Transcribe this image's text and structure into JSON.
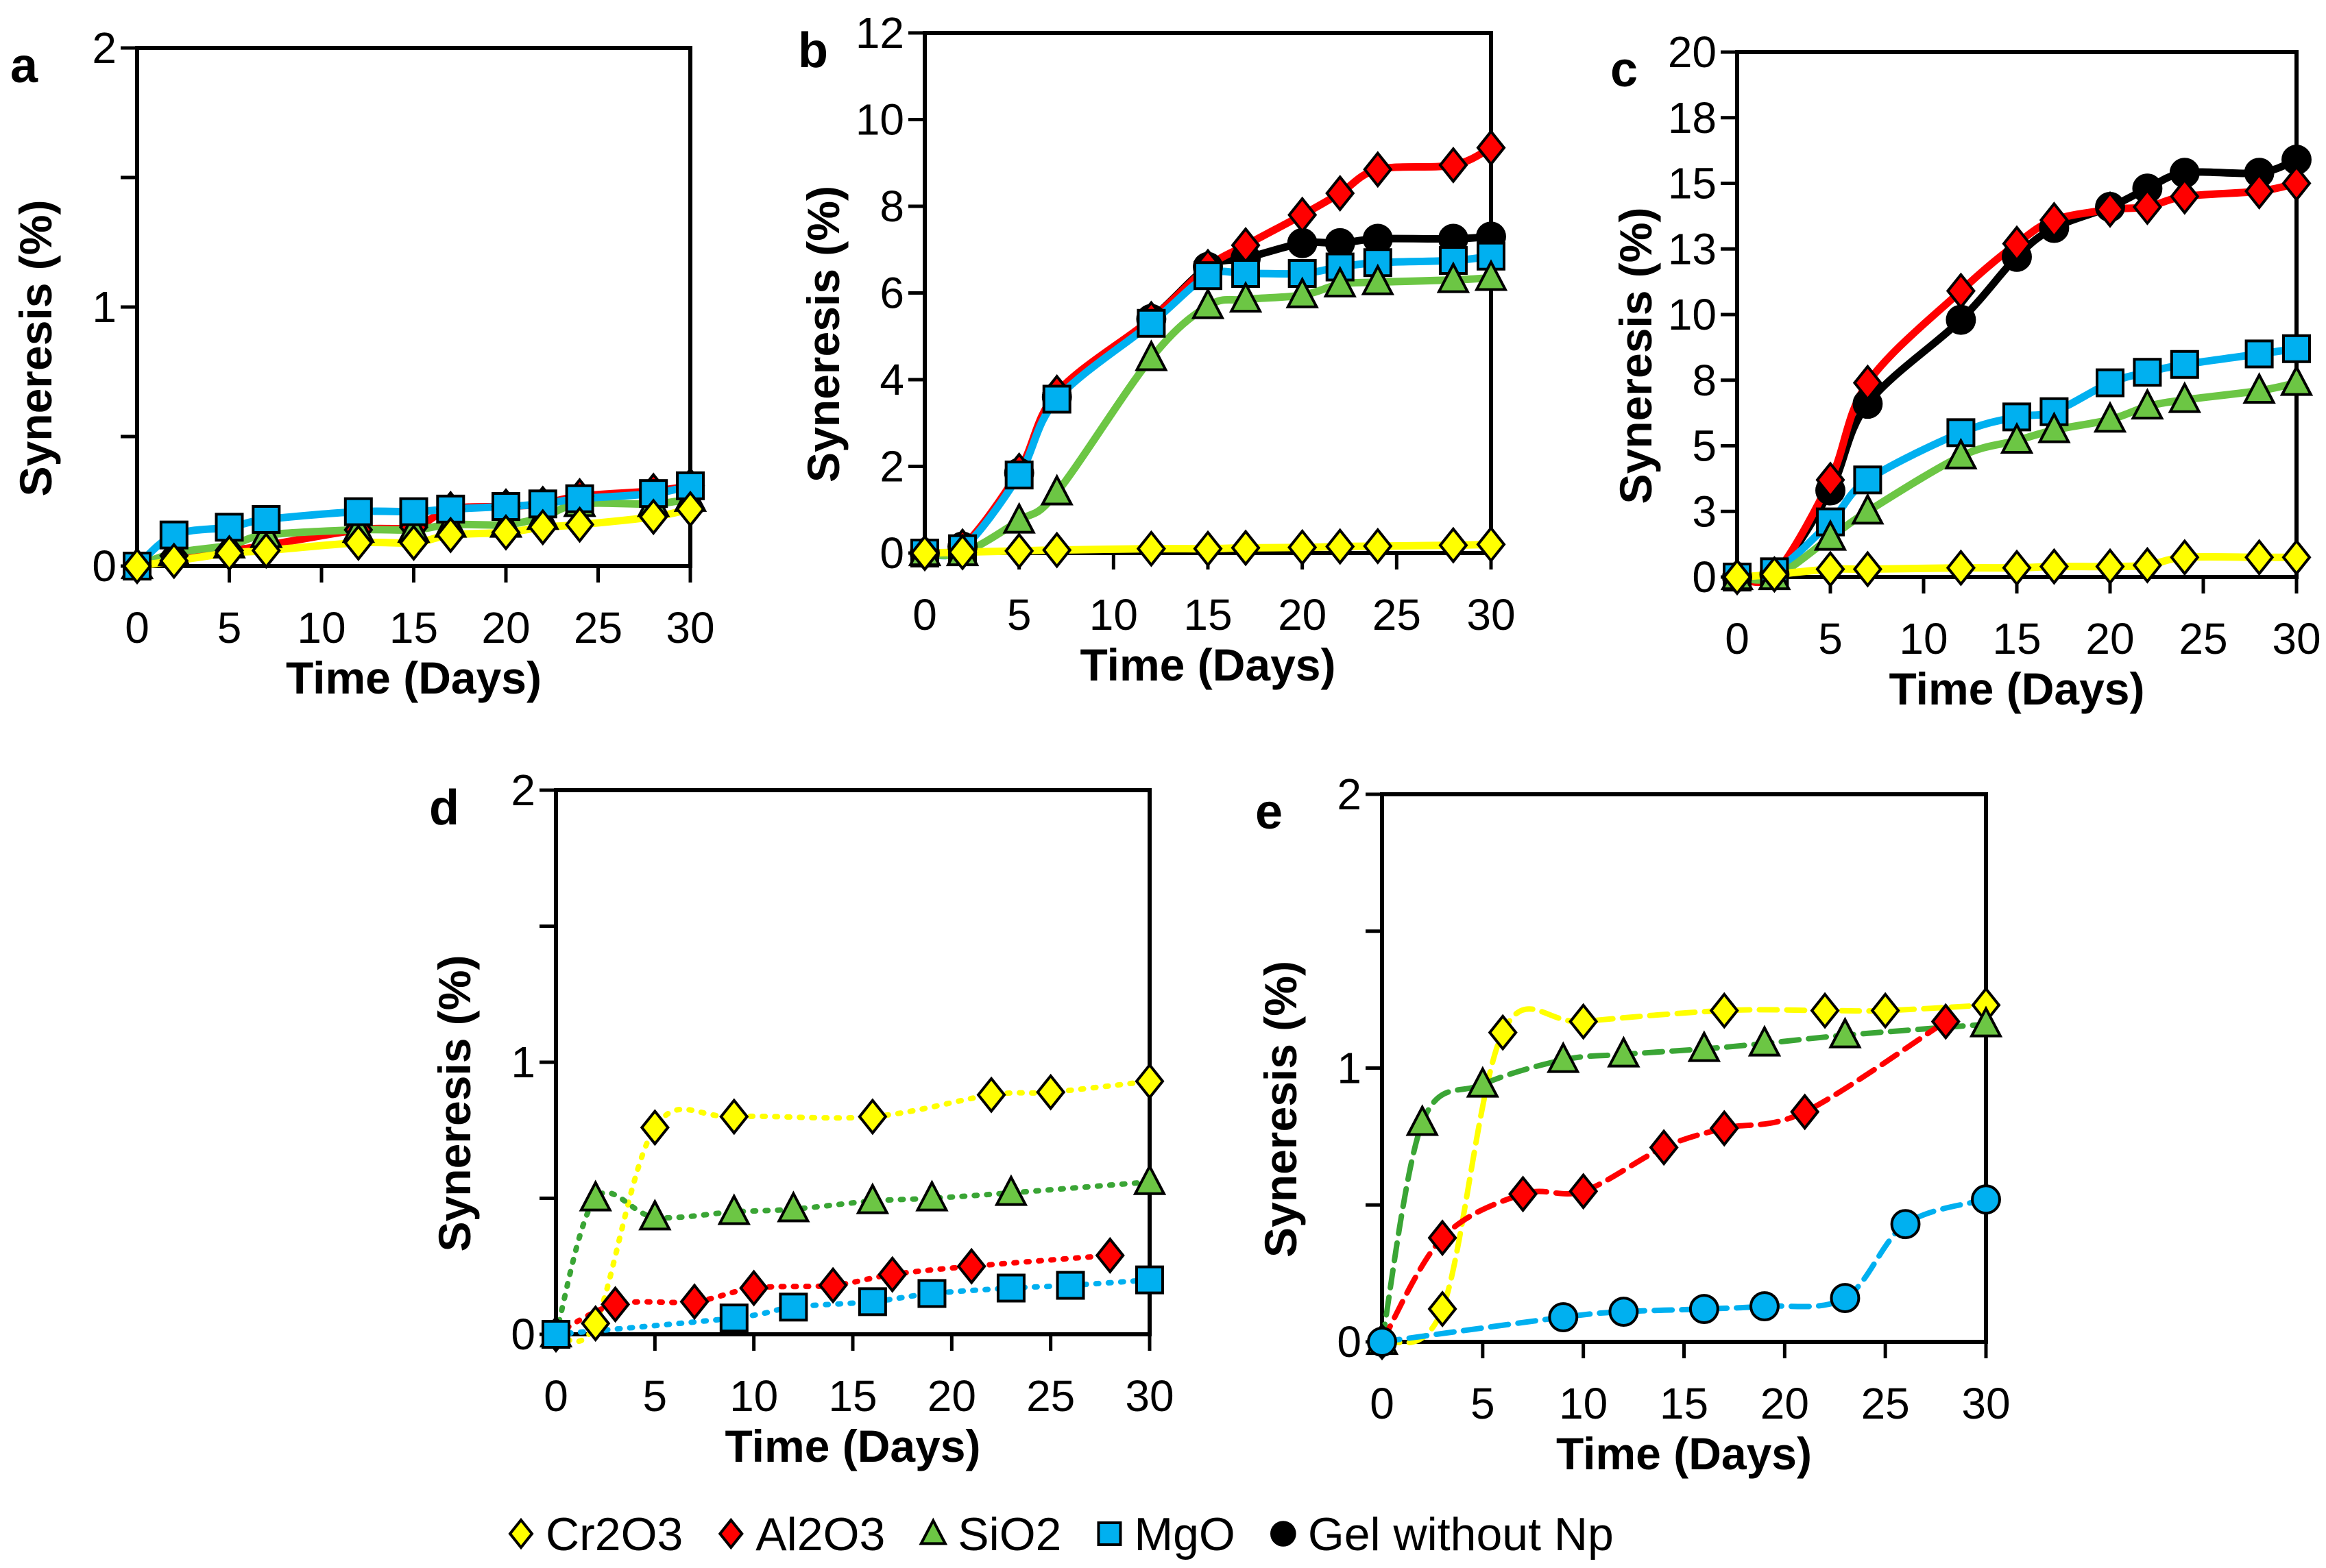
{
  "legend": {
    "placement": "bottom-center",
    "items": [
      {
        "name": "Cr2O3",
        "marker": "diamond",
        "color": "#FFFF00"
      },
      {
        "name": "Al2O3",
        "marker": "diamond",
        "color": "#FF0000"
      },
      {
        "name": "SiO2",
        "marker": "triangle",
        "color": "#6CC644"
      },
      {
        "name": "MgO",
        "marker": "square",
        "color": "#00B0F0"
      },
      {
        "name": "Gel without Np",
        "marker": "circle",
        "color": "#000000"
      }
    ]
  },
  "chart_data": [
    {
      "panel": "a",
      "type": "line",
      "line_style": "solid",
      "xlabel": "Time (Days)",
      "ylabel": "Syneresis (%)",
      "xlim": [
        0,
        30
      ],
      "ylim": [
        0,
        2
      ],
      "xticks": [
        0,
        5,
        10,
        15,
        20,
        25,
        30
      ],
      "yticks": [
        0,
        0.5,
        1,
        1.5,
        2
      ],
      "ytick_labels": [
        "0",
        "",
        "1",
        "",
        "2"
      ],
      "series": [
        {
          "name": "Al2O3",
          "x": [
            0,
            2,
            5,
            7,
            12,
            15,
            17,
            20,
            22,
            24,
            28,
            30
          ],
          "y": [
            0,
            0.04,
            0.06,
            0.08,
            0.14,
            0.15,
            0.22,
            0.23,
            0.24,
            0.27,
            0.29,
            0.31
          ]
        },
        {
          "name": "SiO2",
          "x": [
            0,
            2,
            5,
            7,
            12,
            15,
            17,
            20,
            22,
            24,
            28,
            30
          ],
          "y": [
            0,
            0.05,
            0.08,
            0.12,
            0.14,
            0.14,
            0.16,
            0.16,
            0.19,
            0.24,
            0.24,
            0.26
          ]
        },
        {
          "name": "MgO",
          "x": [
            0,
            2,
            5,
            7,
            12,
            15,
            17,
            20,
            22,
            24,
            28,
            30
          ],
          "y": [
            0,
            0.12,
            0.15,
            0.18,
            0.21,
            0.21,
            0.22,
            0.23,
            0.24,
            0.26,
            0.28,
            0.31
          ]
        },
        {
          "name": "Cr2O3",
          "x": [
            0,
            2,
            5,
            7,
            12,
            15,
            17,
            20,
            22,
            24,
            28,
            30
          ],
          "y": [
            0,
            0.02,
            0.05,
            0.06,
            0.09,
            0.09,
            0.12,
            0.13,
            0.15,
            0.16,
            0.19,
            0.22
          ]
        }
      ]
    },
    {
      "panel": "b",
      "type": "line",
      "line_style": "solid",
      "xlabel": "Time (Days)",
      "ylabel": "Syneresis (%)",
      "xlim": [
        0,
        30
      ],
      "ylim": [
        0,
        12
      ],
      "xticks": [
        0,
        5,
        10,
        15,
        20,
        25,
        30
      ],
      "yticks": [
        0,
        2,
        4,
        6,
        8,
        10,
        12
      ],
      "ytick_labels": [
        "0",
        "2",
        "4",
        "6",
        "8",
        "10",
        "12"
      ],
      "series": [
        {
          "name": "Gel without Np",
          "x": [
            0,
            2,
            5,
            7,
            12,
            15,
            17,
            20,
            22,
            24,
            28,
            30
          ],
          "y": [
            0,
            0.15,
            1.85,
            3.6,
            5.4,
            6.6,
            6.8,
            7.15,
            7.15,
            7.25,
            7.25,
            7.3
          ]
        },
        {
          "name": "Al2O3",
          "x": [
            0,
            2,
            5,
            7,
            12,
            15,
            17,
            20,
            22,
            24,
            28,
            30
          ],
          "y": [
            0,
            0.15,
            1.9,
            3.7,
            5.4,
            6.6,
            7.1,
            7.8,
            8.3,
            8.85,
            8.95,
            9.35
          ]
        },
        {
          "name": "MgO",
          "x": [
            0,
            2,
            5,
            7,
            12,
            15,
            17,
            20,
            22,
            24,
            28,
            30
          ],
          "y": [
            0,
            0.1,
            1.8,
            3.55,
            5.3,
            6.4,
            6.45,
            6.45,
            6.6,
            6.7,
            6.75,
            6.85
          ]
        },
        {
          "name": "SiO2",
          "x": [
            0,
            2,
            5,
            7,
            12,
            15,
            17,
            20,
            22,
            24,
            28,
            30
          ],
          "y": [
            0,
            0,
            0.75,
            1.4,
            4.5,
            5.7,
            5.85,
            5.95,
            6.2,
            6.25,
            6.3,
            6.35
          ]
        },
        {
          "name": "Cr2O3",
          "x": [
            0,
            2,
            5,
            7,
            12,
            15,
            17,
            20,
            22,
            24,
            28,
            30
          ],
          "y": [
            0,
            0.02,
            0.05,
            0.07,
            0.1,
            0.1,
            0.12,
            0.13,
            0.15,
            0.16,
            0.18,
            0.2
          ]
        }
      ]
    },
    {
      "panel": "c",
      "type": "line",
      "line_style": "solid",
      "xlabel": "Time (Days)",
      "ylabel": "Syneresis (%)",
      "xlim": [
        0,
        30
      ],
      "ylim": [
        0,
        20
      ],
      "xticks": [
        0,
        5,
        10,
        15,
        20,
        25,
        30
      ],
      "yticks": [
        0,
        2.5,
        5,
        7.5,
        10,
        12.5,
        15,
        17.5,
        20
      ],
      "ytick_labels": [
        "0",
        "3",
        "5",
        "8",
        "10",
        "13",
        "15",
        "18",
        "20"
      ],
      "series": [
        {
          "name": "Gel without Np",
          "x": [
            0,
            2,
            5,
            7,
            12,
            15,
            17,
            20,
            22,
            24,
            28,
            30
          ],
          "y": [
            0,
            0.1,
            3.3,
            6.6,
            9.8,
            12.2,
            13.3,
            14.1,
            14.8,
            15.4,
            15.4,
            15.9
          ]
        },
        {
          "name": "Al2O3",
          "x": [
            0,
            2,
            5,
            7,
            12,
            15,
            17,
            20,
            22,
            24,
            28,
            30
          ],
          "y": [
            0,
            0.1,
            3.7,
            7.4,
            10.9,
            12.7,
            13.6,
            14.0,
            14.1,
            14.5,
            14.7,
            15.0
          ]
        },
        {
          "name": "MgO",
          "x": [
            0,
            2,
            5,
            7,
            12,
            15,
            17,
            20,
            22,
            24,
            28,
            30
          ],
          "y": [
            0,
            0.2,
            2.1,
            3.7,
            5.5,
            6.1,
            6.3,
            7.4,
            7.8,
            8.1,
            8.5,
            8.7
          ]
        },
        {
          "name": "SiO2",
          "x": [
            0,
            2,
            5,
            7,
            12,
            15,
            17,
            20,
            22,
            24,
            28,
            30
          ],
          "y": [
            0,
            0,
            1.5,
            2.5,
            4.6,
            5.2,
            5.6,
            6.0,
            6.5,
            6.75,
            7.1,
            7.4
          ]
        },
        {
          "name": "Cr2O3",
          "x": [
            0,
            2,
            5,
            7,
            12,
            15,
            17,
            20,
            22,
            24,
            28,
            30
          ],
          "y": [
            0,
            0.1,
            0.3,
            0.3,
            0.35,
            0.35,
            0.4,
            0.4,
            0.45,
            0.75,
            0.75,
            0.75
          ]
        }
      ]
    },
    {
      "panel": "d",
      "type": "line",
      "line_style": "dotted",
      "xlabel": "Time (Days)",
      "ylabel": "Syneresis (%)",
      "xlim": [
        0,
        30
      ],
      "ylim": [
        0,
        2
      ],
      "xticks": [
        0,
        5,
        10,
        15,
        20,
        25,
        30
      ],
      "yticks": [
        0,
        0.5,
        1,
        1.5,
        2
      ],
      "ytick_labels": [
        "0",
        "",
        "1",
        "",
        "2"
      ],
      "series": [
        {
          "name": "Cr2O3",
          "x": [
            0,
            2,
            5,
            9,
            16,
            22,
            25,
            30
          ],
          "y": [
            0,
            0.04,
            0.76,
            0.8,
            0.8,
            0.88,
            0.89,
            0.93
          ]
        },
        {
          "name": "SiO2",
          "x": [
            0,
            2,
            5,
            9,
            12,
            16,
            19,
            23,
            30
          ],
          "y": [
            0,
            0.5,
            0.43,
            0.45,
            0.46,
            0.49,
            0.5,
            0.52,
            0.56
          ]
        },
        {
          "name": "Al2O3",
          "x": [
            0,
            3,
            7,
            10,
            14,
            17,
            21,
            28
          ],
          "y": [
            0,
            0.11,
            0.12,
            0.17,
            0.18,
            0.22,
            0.25,
            0.29
          ]
        },
        {
          "name": "MgO",
          "x": [
            0,
            9,
            12,
            16,
            19,
            23,
            26,
            30
          ],
          "y": [
            0,
            0.06,
            0.1,
            0.12,
            0.15,
            0.17,
            0.18,
            0.2
          ]
        }
      ]
    },
    {
      "panel": "e",
      "type": "line",
      "line_style": "dashed",
      "xlabel": "Time (Days)",
      "ylabel": "Syneresis (%)",
      "xlim": [
        0,
        30
      ],
      "ylim": [
        0,
        2
      ],
      "xticks": [
        0,
        5,
        10,
        15,
        20,
        25,
        30
      ],
      "yticks": [
        0,
        0.5,
        1,
        1.5,
        2
      ],
      "ytick_labels": [
        "0",
        "",
        "1",
        "",
        "2"
      ],
      "series": [
        {
          "name": "Cr2O3",
          "x": [
            0,
            3,
            6,
            10,
            17,
            22,
            25,
            30
          ],
          "y": [
            0,
            0.12,
            1.13,
            1.17,
            1.21,
            1.21,
            1.21,
            1.23
          ]
        },
        {
          "name": "SiO2",
          "x": [
            0,
            2,
            5,
            9,
            12,
            16,
            19,
            23,
            30
          ],
          "y": [
            0,
            0.8,
            0.94,
            1.03,
            1.05,
            1.07,
            1.09,
            1.12,
            1.16
          ]
        },
        {
          "name": "Al2O3",
          "x": [
            0,
            3,
            7,
            10,
            14,
            17,
            21,
            28
          ],
          "y": [
            0,
            0.38,
            0.54,
            0.55,
            0.71,
            0.78,
            0.84,
            1.17
          ]
        },
        {
          "name": "MgO",
          "marker": "circle",
          "x": [
            0,
            9,
            12,
            16,
            19,
            23,
            26,
            30
          ],
          "y": [
            0,
            0.09,
            0.11,
            0.12,
            0.13,
            0.16,
            0.43,
            0.52
          ]
        }
      ]
    }
  ]
}
